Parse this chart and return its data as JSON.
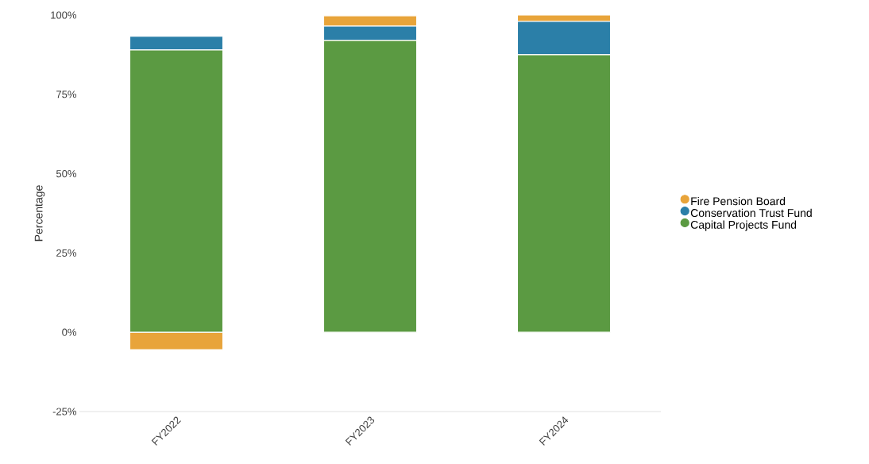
{
  "chart_data": {
    "type": "bar",
    "stacked": true,
    "ylabel": "Percentage",
    "categories": [
      "FY2022",
      "FY2023",
      "FY2024"
    ],
    "series": [
      {
        "name": "Capital Projects Fund",
        "color": "#5b9a42",
        "values": [
          89,
          92,
          87.5
        ]
      },
      {
        "name": "Conservation Trust Fund",
        "color": "#2b7fa8",
        "values": [
          4.3,
          4.5,
          10.5
        ]
      },
      {
        "name": "Fire Pension Board",
        "color": "#e8a43a",
        "values": [
          -5.5,
          3.3,
          2
        ]
      }
    ],
    "ylim": [
      -25,
      100
    ],
    "yticks": [
      {
        "value": -25,
        "label": "-25%"
      },
      {
        "value": 0,
        "label": "0%"
      },
      {
        "value": 25,
        "label": "25%"
      },
      {
        "value": 50,
        "label": "50%"
      },
      {
        "value": 75,
        "label": "75%"
      },
      {
        "value": 100,
        "label": "100%"
      }
    ],
    "grid": false,
    "legend": "right"
  }
}
